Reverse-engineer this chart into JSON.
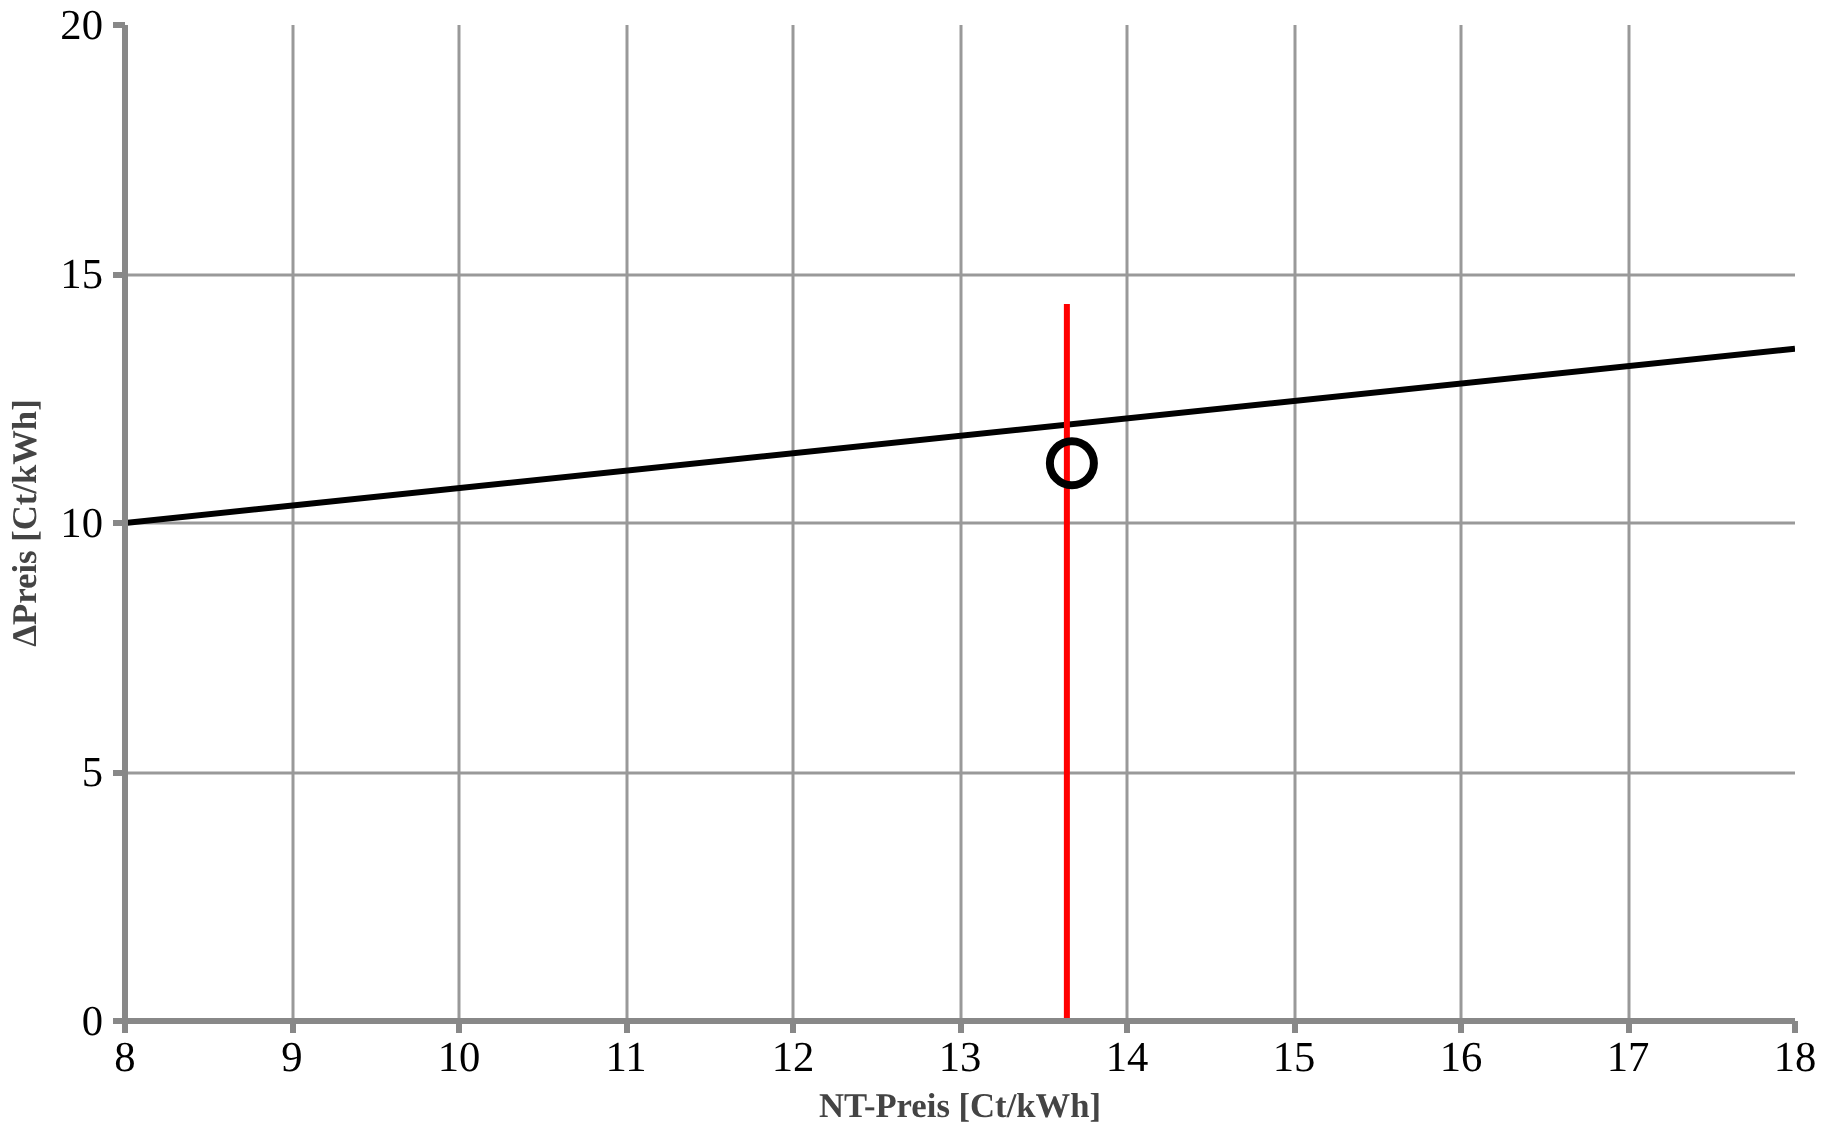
{
  "chart_data": {
    "type": "line",
    "xlabel": "NT-Preis [Ct/kWh]",
    "ylabel": "ΔPreis [Ct/kWh]",
    "xlim": [
      8,
      18
    ],
    "ylim": [
      0,
      20
    ],
    "xticks": [
      8,
      9,
      10,
      11,
      12,
      13,
      14,
      15,
      16,
      17,
      18
    ],
    "yticks": [
      0,
      5,
      10,
      15,
      20
    ],
    "grid": true,
    "series": [
      {
        "color": "#000000",
        "x": [
          8,
          18
        ],
        "values": [
          10,
          13.5
        ]
      },
      {
        "color": "#ff0000",
        "x": [
          13.64,
          13.64
        ],
        "values": [
          0,
          14.4
        ]
      },
      {
        "type": "scatter",
        "color": "#000000",
        "marker": "circle",
        "x": [
          13.67
        ],
        "values": [
          11.2
        ]
      }
    ]
  }
}
